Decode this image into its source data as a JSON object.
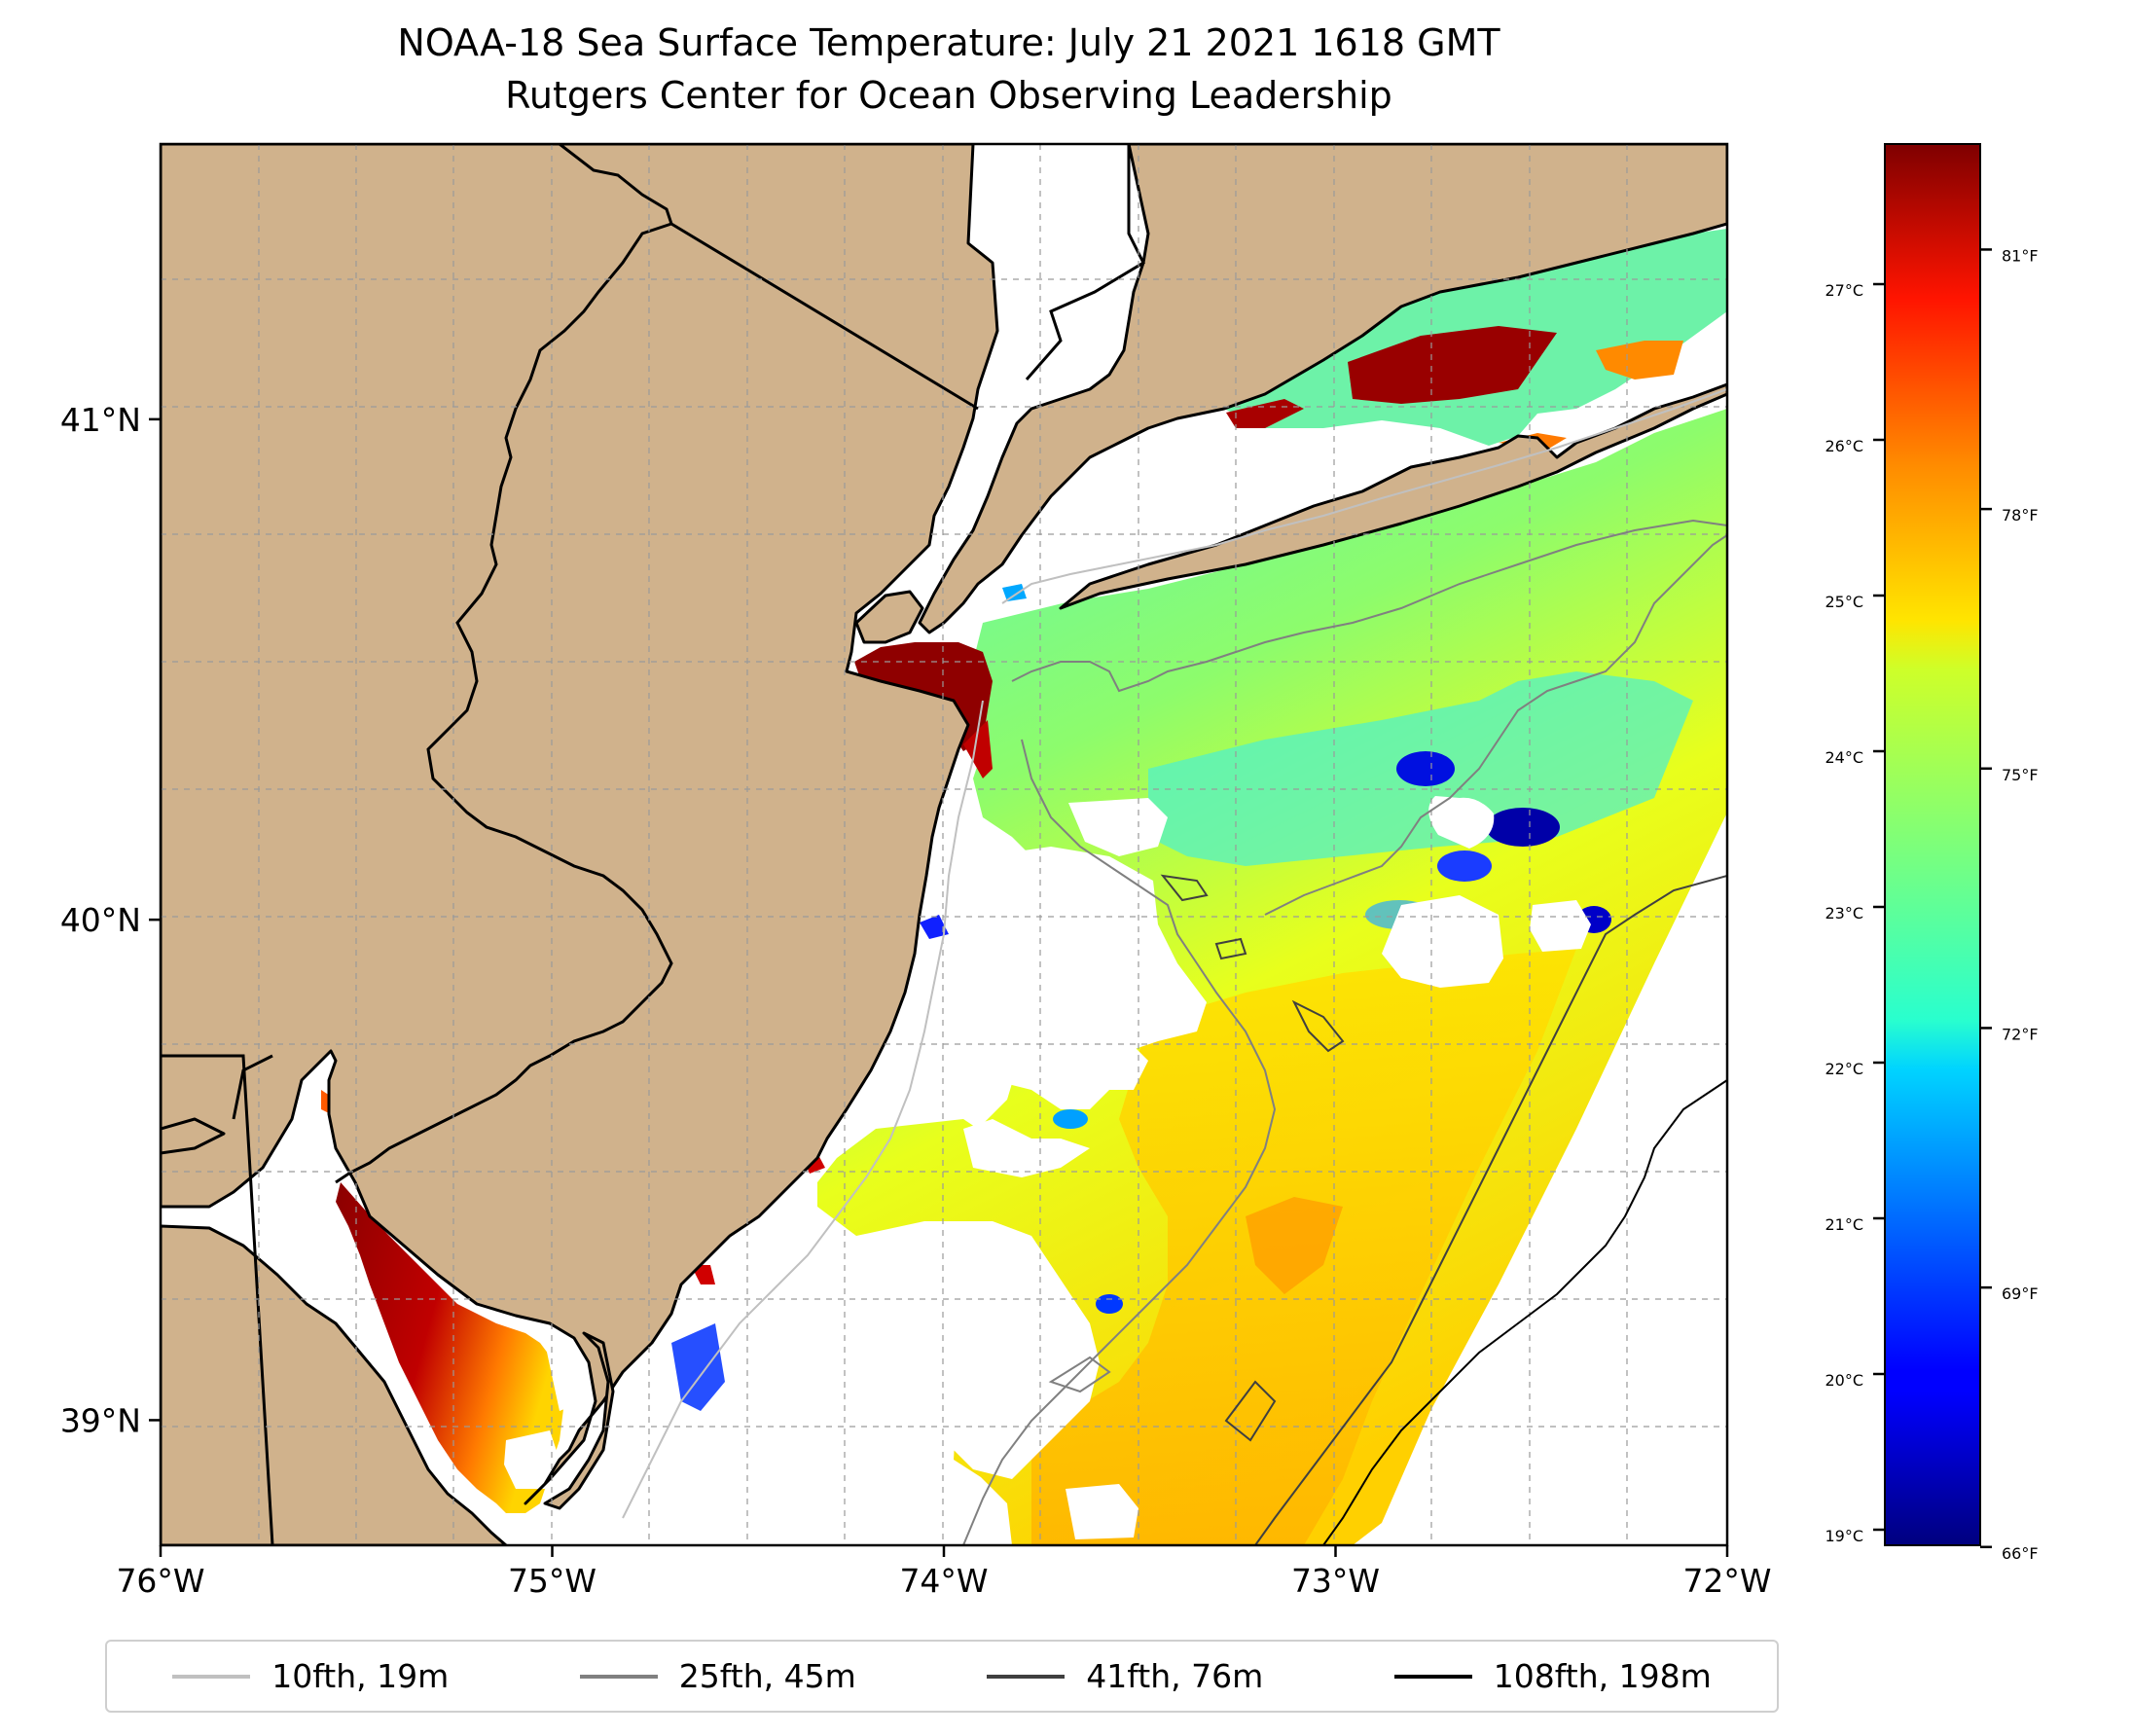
{
  "title": {
    "line1": "NOAA-18 Sea Surface Temperature: July 21 2021 1618 GMT",
    "line2": "Rutgers Center for Ocean Observing Leadership"
  },
  "map": {
    "extent": {
      "lon": [
        -76,
        -72
      ],
      "lat": [
        38.75,
        41.55
      ]
    },
    "land_color": "#d0b28c",
    "grid": true,
    "lon_ticks": [
      {
        "value": -76,
        "label": "76°W"
      },
      {
        "value": -75,
        "label": "75°W"
      },
      {
        "value": -74,
        "label": "74°W"
      },
      {
        "value": -73,
        "label": "73°W"
      },
      {
        "value": -72,
        "label": "72°W"
      }
    ],
    "lat_ticks": [
      {
        "value": 41,
        "label": "41°N"
      },
      {
        "value": 40,
        "label": "40°N"
      },
      {
        "value": 39,
        "label": "39°N"
      }
    ]
  },
  "colorbar": {
    "colormap": "jet",
    "celsius_range": [
      18.9,
      27.9
    ],
    "celsius_ticks": [
      {
        "value": 19,
        "label": "19°C"
      },
      {
        "value": 20,
        "label": "20°C"
      },
      {
        "value": 21,
        "label": "21°C"
      },
      {
        "value": 22,
        "label": "22°C"
      },
      {
        "value": 23,
        "label": "23°C"
      },
      {
        "value": 24,
        "label": "24°C"
      },
      {
        "value": 25,
        "label": "25°C"
      },
      {
        "value": 26,
        "label": "26°C"
      },
      {
        "value": 27,
        "label": "27°C"
      }
    ],
    "fahrenheit_ticks": [
      {
        "value": 66,
        "label": "66°F"
      },
      {
        "value": 69,
        "label": "69°F"
      },
      {
        "value": 72,
        "label": "72°F"
      },
      {
        "value": 75,
        "label": "75°F"
      },
      {
        "value": 78,
        "label": "78°F"
      },
      {
        "value": 81,
        "label": "81°F"
      }
    ]
  },
  "legend": {
    "entries": [
      {
        "label": "10fth, 19m",
        "color": "#c0c0c0"
      },
      {
        "label": "25fth, 45m",
        "color": "#808080"
      },
      {
        "label": "41fth, 76m",
        "color": "#404040"
      },
      {
        "label": "108fth, 198m",
        "color": "#000000"
      }
    ]
  }
}
